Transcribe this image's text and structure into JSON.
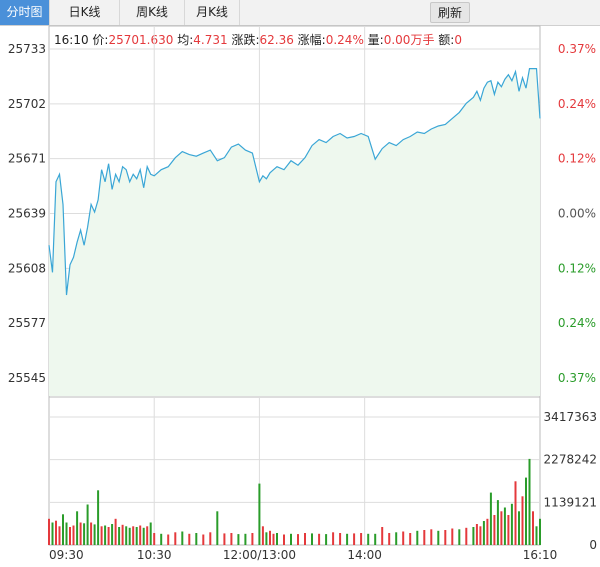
{
  "tabs": [
    {
      "label": "分时图",
      "active": true
    },
    {
      "label": "日K线",
      "active": false
    },
    {
      "label": "周K线",
      "active": false
    },
    {
      "label": "月K线",
      "active": false
    }
  ],
  "refresh_label": "刷新",
  "info": {
    "time": "16:10",
    "price_label": "价:",
    "price": "25701.630",
    "avg_label": "均:",
    "avg": "4.731",
    "change_label": "涨跌:",
    "change": "62.36",
    "pct_label": "涨幅:",
    "pct": "0.24%",
    "vol_label": "量:",
    "vol": "0.00万手",
    "amt_label": "额:",
    "amt": "0"
  },
  "colors": {
    "up": "#e4393c",
    "down": "#2a9c2a",
    "neutral": "#555555",
    "line": "#3aa6d6",
    "area": "#eef8ee",
    "grid": "#dddddd"
  },
  "chart_data": [
    {
      "type": "area",
      "title": "",
      "y_ticks_left": [
        "25733",
        "25702",
        "25671",
        "25639",
        "25608",
        "25577",
        "25545"
      ],
      "y_ticks_right": [
        "0.37%",
        "0.24%",
        "0.12%",
        "0.00%",
        "0.12%",
        "0.24%",
        "0.37%"
      ],
      "ylim": [
        25530,
        25748
      ],
      "x_ticks": [
        "09:30",
        "10:30",
        "12:00/13:00",
        "14:00",
        "16:10"
      ],
      "x_domain_minutes": [
        0,
        280
      ],
      "x_tick_minutes": [
        0,
        60,
        120,
        180,
        280
      ],
      "series": [
        {
          "x": [
            0,
            2,
            4,
            6,
            8,
            10,
            12,
            14,
            16,
            18,
            20,
            22,
            24,
            26,
            28,
            30,
            32,
            34,
            36,
            38,
            40,
            42,
            44,
            46,
            48,
            50,
            52,
            54,
            56,
            58,
            60,
            64,
            68,
            72,
            76,
            80,
            84,
            88,
            92,
            96,
            100,
            104,
            108,
            112,
            116,
            120,
            122,
            124,
            126,
            128,
            130,
            134,
            138,
            142,
            146,
            150,
            154,
            158,
            162,
            166,
            170,
            174,
            178,
            182,
            186,
            190,
            194,
            198,
            202,
            206,
            210,
            214,
            218,
            222,
            226,
            230,
            234,
            238,
            242,
            244,
            246,
            248,
            250,
            252,
            254,
            256,
            258,
            260,
            262,
            264,
            266,
            268,
            270,
            272,
            274,
            276,
            278,
            280
          ],
          "values": [
            25618,
            25600,
            25660,
            25665,
            25645,
            25585,
            25605,
            25610,
            25620,
            25628,
            25618,
            25630,
            25645,
            25640,
            25648,
            25668,
            25660,
            25672,
            25655,
            25665,
            25660,
            25670,
            25668,
            25660,
            25665,
            25662,
            25668,
            25656,
            25670,
            25665,
            25664,
            25668,
            25670,
            25676,
            25680,
            25678,
            25677,
            25679,
            25681,
            25674,
            25676,
            25683,
            25685,
            25681,
            25679,
            25660,
            25664,
            25662,
            25666,
            25668,
            25670,
            25668,
            25674,
            25671,
            25676,
            25684,
            25688,
            25686,
            25690,
            25692,
            25689,
            25690,
            25692,
            25690,
            25675,
            25682,
            25686,
            25684,
            25688,
            25690,
            25693,
            25692,
            25695,
            25697,
            25698,
            25702,
            25706,
            25712,
            25716,
            25720,
            25714,
            25722,
            25726,
            25727,
            25718,
            25726,
            25723,
            25728,
            25731,
            25727,
            25733,
            25720,
            25729,
            25722,
            25735,
            25735,
            25735,
            25702
          ]
        }
      ]
    },
    {
      "type": "bar",
      "title": "",
      "y_ticks": [
        "3417363",
        "2278242",
        "1139121",
        "0"
      ],
      "ylim": [
        0,
        3417363
      ],
      "x_domain_minutes": [
        0,
        280
      ],
      "series": [
        {
          "name": "",
          "x": [
            0,
            2,
            4,
            6,
            8,
            10,
            12,
            14,
            16,
            18,
            20,
            22,
            24,
            26,
            28,
            30,
            32,
            34,
            36,
            38,
            40,
            42,
            44,
            46,
            48,
            50,
            52,
            54,
            56,
            58,
            60,
            64,
            68,
            72,
            76,
            80,
            84,
            88,
            92,
            96,
            100,
            104,
            108,
            112,
            116,
            120,
            122,
            124,
            126,
            128,
            130,
            134,
            138,
            142,
            146,
            150,
            154,
            158,
            162,
            166,
            170,
            174,
            178,
            182,
            186,
            190,
            194,
            198,
            202,
            206,
            210,
            214,
            218,
            222,
            226,
            230,
            234,
            238,
            242,
            244,
            246,
            248,
            250,
            252,
            254,
            256,
            258,
            260,
            262,
            264,
            266,
            268,
            270,
            272,
            274,
            276,
            278,
            280
          ],
          "values": [
            700000,
            600000,
            650000,
            500000,
            820000,
            600000,
            480000,
            520000,
            900000,
            600000,
            580000,
            1080000,
            600000,
            550000,
            1460000,
            500000,
            520000,
            480000,
            560000,
            700000,
            480000,
            540000,
            500000,
            460000,
            500000,
            480000,
            520000,
            460000,
            500000,
            600000,
            320000,
            300000,
            280000,
            340000,
            360000,
            300000,
            320000,
            280000,
            340000,
            900000,
            310000,
            320000,
            290000,
            300000,
            320000,
            1640000,
            500000,
            340000,
            380000,
            300000,
            320000,
            280000,
            300000,
            290000,
            320000,
            310000,
            300000,
            290000,
            340000,
            320000,
            300000,
            310000,
            320000,
            300000,
            300000,
            480000,
            320000,
            340000,
            360000,
            320000,
            380000,
            400000,
            420000,
            380000,
            400000,
            440000,
            420000,
            460000,
            480000,
            560000,
            500000,
            640000,
            700000,
            1400000,
            800000,
            1200000,
            900000,
            1000000,
            800000,
            1100000,
            1700000,
            900000,
            1300000,
            1800000,
            2300000,
            900000,
            500000,
            700000
          ],
          "direction": [
            "up",
            "down",
            "up",
            "up",
            "down",
            "down",
            "up",
            "up",
            "down",
            "up",
            "down",
            "down",
            "up",
            "down",
            "down",
            "up",
            "down",
            "up",
            "down",
            "up",
            "down",
            "up",
            "down",
            "down",
            "up",
            "down",
            "up",
            "down",
            "up",
            "down",
            "up",
            "down",
            "up",
            "up",
            "down",
            "up",
            "down",
            "up",
            "up",
            "down",
            "up",
            "up",
            "down",
            "down",
            "up",
            "down",
            "up",
            "down",
            "up",
            "up",
            "down",
            "up",
            "down",
            "up",
            "up",
            "down",
            "up",
            "down",
            "up",
            "up",
            "down",
            "up",
            "up",
            "down",
            "down",
            "up",
            "up",
            "down",
            "up",
            "up",
            "down",
            "up",
            "up",
            "down",
            "up",
            "up",
            "down",
            "up",
            "down",
            "up",
            "up",
            "down",
            "up",
            "down",
            "up",
            "down",
            "up",
            "down",
            "up",
            "down",
            "up",
            "down",
            "up",
            "down",
            "down",
            "up",
            "down",
            "down"
          ]
        }
      ]
    }
  ]
}
